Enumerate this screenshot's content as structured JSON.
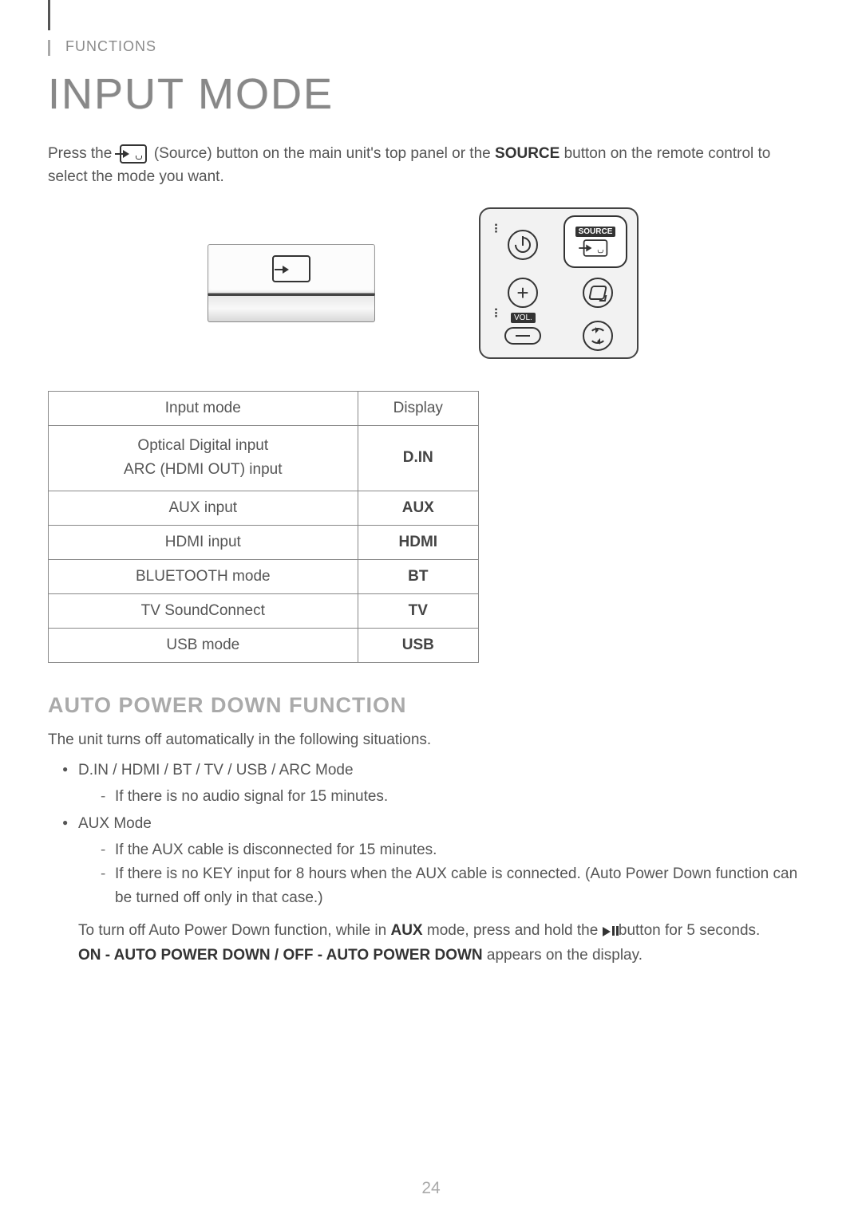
{
  "section_label": "FUNCTIONS",
  "page_title": "INPUT MODE",
  "intro": {
    "part1": "Press the ",
    "source_word": "(Source)",
    "part2": " button on the main unit's top panel or the ",
    "source_button_word": "SOURCE",
    "part3": " button on the remote control to select the mode you want."
  },
  "remote": {
    "source_label": "SOURCE",
    "vol_label": "VOL."
  },
  "table": {
    "headers": [
      "Input mode",
      "Display"
    ],
    "rows": [
      {
        "mode": "Optical Digital input\nARC (HDMI OUT) input",
        "display": "D.IN"
      },
      {
        "mode": "AUX input",
        "display": "AUX"
      },
      {
        "mode": "HDMI input",
        "display": "HDMI"
      },
      {
        "mode": "BLUETOOTH mode",
        "display": "BT"
      },
      {
        "mode": "TV SoundConnect",
        "display": "TV"
      },
      {
        "mode": "USB mode",
        "display": "USB"
      }
    ]
  },
  "auto_power": {
    "heading": "AUTO POWER DOWN FUNCTION",
    "intro": "The unit turns off automatically in the following situations.",
    "mode1": {
      "label": "D.IN / HDMI / BT / TV / USB / ARC Mode",
      "sub1": "If there is no audio signal for 15 minutes."
    },
    "mode2": {
      "label": "AUX Mode",
      "sub1": "If the AUX cable is disconnected for 15 minutes.",
      "sub2": "If there is no KEY input for 8 hours when the AUX cable is connected. (Auto Power Down function can be turned off only in that case.)"
    },
    "turnoff_pre": "To turn off Auto Power Down function, while in ",
    "aux_bold": "AUX",
    "turnoff_mid": " mode, press and hold the ",
    "turnoff_post": " button for 5 seconds.",
    "display_msg_bold": "ON - AUTO POWER DOWN / OFF - AUTO POWER DOWN",
    "display_msg_tail": " appears on the display."
  },
  "page_number": "24",
  "colors": {
    "text": "#555555",
    "heading_gray": "#aaaaaa",
    "border": "#888888"
  }
}
